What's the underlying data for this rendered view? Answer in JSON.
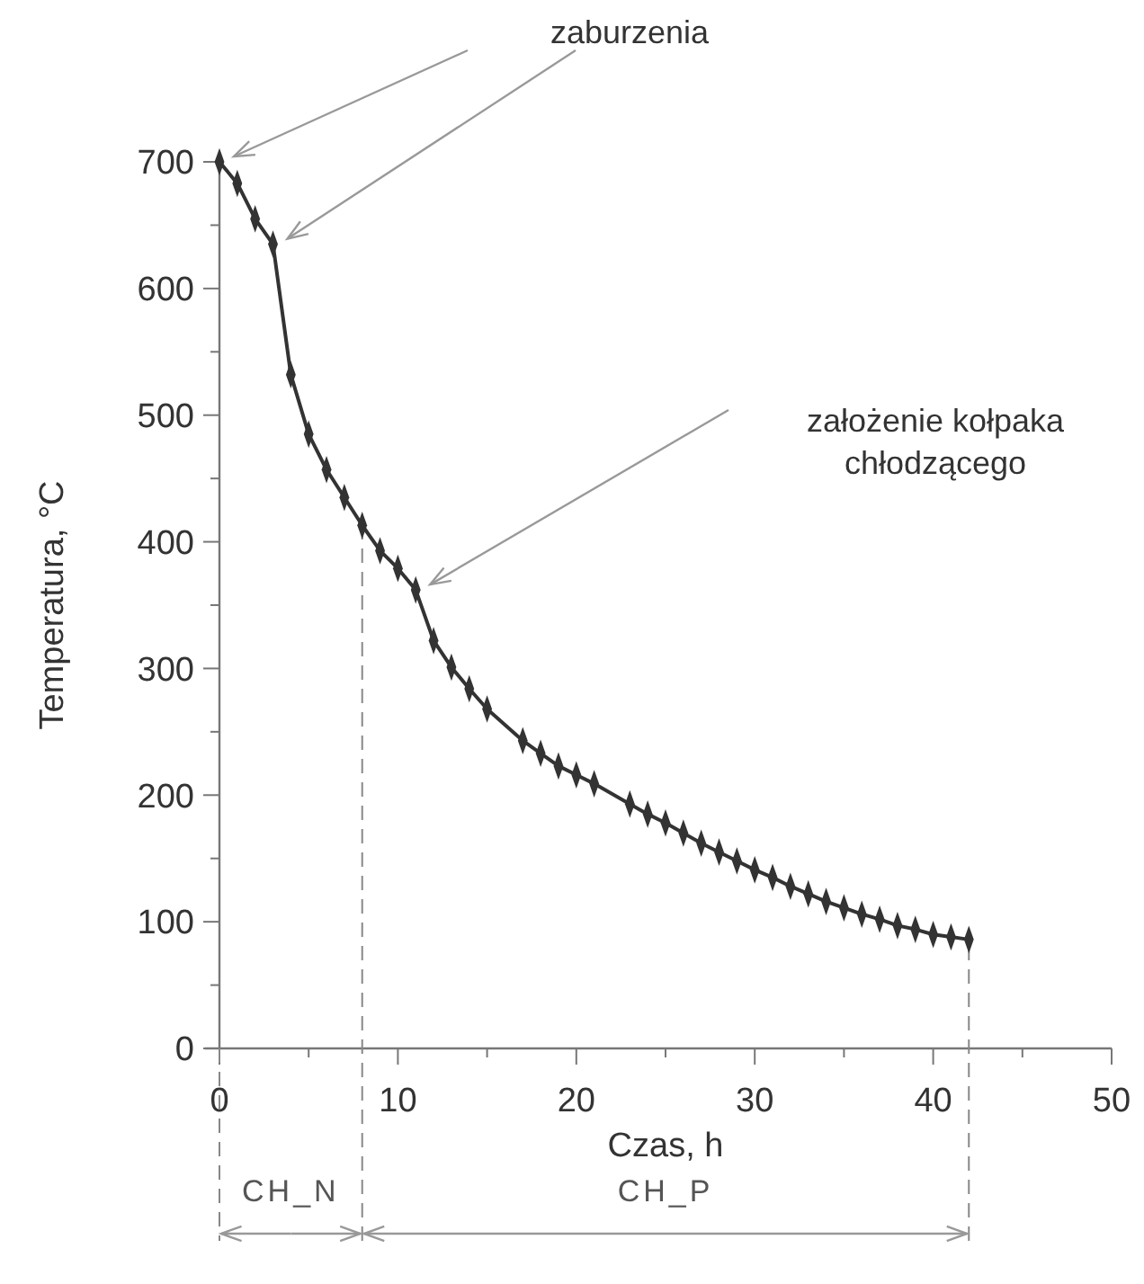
{
  "chart_data": {
    "type": "line",
    "xlabel": "Czas, h",
    "ylabel": "Temperatura, °C",
    "x": [
      0,
      1,
      2,
      3,
      4,
      5,
      6,
      7,
      8,
      9,
      10,
      11,
      12,
      13,
      14,
      15,
      17,
      18,
      19,
      20,
      21,
      23,
      24,
      25,
      26,
      27,
      28,
      29,
      30,
      31,
      32,
      33,
      34,
      35,
      36,
      37,
      38,
      39,
      40,
      41,
      42
    ],
    "series": [
      {
        "color": "#333333",
        "values": [
          700,
          683,
          655,
          635,
          532,
          485,
          457,
          435,
          413,
          393,
          379,
          362,
          322,
          301,
          284,
          268,
          243,
          233,
          223,
          216,
          209,
          193,
          185,
          178,
          170,
          162,
          155,
          148,
          141,
          135,
          128,
          122,
          116,
          111,
          106,
          102,
          97,
          94,
          90,
          88,
          86
        ]
      }
    ],
    "xlim": [
      0,
      50
    ],
    "ylim": [
      0,
      700
    ],
    "xticks": [
      0,
      {
        "value": 5,
        "label": null
      },
      10,
      {
        "value": 15,
        "label": null
      },
      20,
      {
        "value": 25,
        "label": null
      },
      30,
      {
        "value": 35,
        "label": null
      },
      40,
      {
        "value": 45,
        "label": null
      },
      50
    ],
    "yticks": [
      0,
      {
        "value": 50,
        "label": null
      },
      100,
      {
        "value": 150,
        "label": null
      },
      200,
      {
        "value": 250,
        "label": null
      },
      300,
      {
        "value": 350,
        "label": null
      },
      400,
      {
        "value": 450,
        "label": null
      },
      500,
      {
        "value": 550,
        "label": null
      },
      600,
      {
        "value": 650,
        "label": null
      },
      700
    ],
    "marker": "diamond",
    "line_style": "solid",
    "grid": false,
    "annotations": [
      "zaburzenia",
      "założenie kołpaka\nchłodzącego",
      "CH_N",
      "CH_P"
    ],
    "ref_lines": [
      {
        "axis": "x",
        "value": 8,
        "line_style": "dashed",
        "color": "#888888"
      },
      {
        "axis": "x",
        "value": 42,
        "line_style": "dashed",
        "color": "#888888"
      }
    ]
  }
}
